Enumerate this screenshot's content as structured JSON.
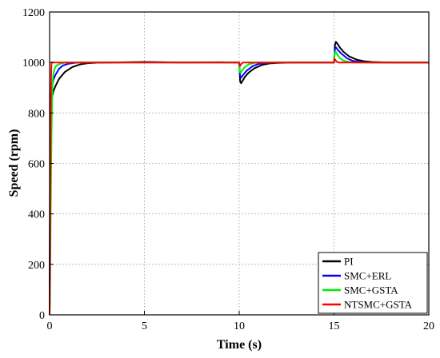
{
  "chart_data": {
    "type": "line",
    "xlabel": "Time (s)",
    "ylabel": "Speed (rpm)",
    "xlim": [
      0,
      20
    ],
    "ylim": [
      0,
      1200
    ],
    "xticks": [
      0,
      5,
      10,
      15,
      20
    ],
    "yticks": [
      0,
      200,
      400,
      600,
      800,
      1000,
      1200
    ],
    "grid": true,
    "legend_position": "bottom-right",
    "series": [
      {
        "name": "PI",
        "color": "#000000",
        "x": [
          0,
          0.02,
          0.05,
          0.08,
          0.1,
          0.15,
          0.2,
          0.3,
          0.5,
          0.8,
          1.2,
          1.6,
          2.0,
          2.5,
          3,
          5,
          7,
          9,
          9.99,
          10.0,
          10.05,
          10.1,
          10.2,
          10.3,
          10.5,
          10.8,
          11.2,
          11.6,
          12,
          13,
          14,
          14.99,
          15.0,
          15.05,
          15.1,
          15.2,
          15.3,
          15.5,
          15.8,
          16.2,
          16.6,
          17,
          18,
          19,
          20
        ],
        "y": [
          0,
          400,
          780,
          830,
          850,
          870,
          885,
          905,
          935,
          962,
          982,
          992,
          997,
          999,
          1000,
          1002,
          1000,
          1001,
          1000,
          1000,
          925,
          918,
          930,
          943,
          960,
          977,
          990,
          996,
          998,
          1000,
          1000,
          1000,
          1000,
          1070,
          1082,
          1072,
          1060,
          1042,
          1024,
          1011,
          1005,
          1002,
          1000,
          1000,
          1000
        ]
      },
      {
        "name": "SMC+ERL",
        "color": "#0000ff",
        "x": [
          0,
          0.02,
          0.05,
          0.1,
          0.15,
          0.2,
          0.3,
          0.5,
          0.7,
          1.0,
          1.3,
          1.6,
          2,
          3,
          5,
          9.99,
          10.0,
          10.05,
          10.1,
          10.2,
          10.4,
          10.7,
          11.0,
          11.4,
          12,
          14.99,
          15.0,
          15.05,
          15.1,
          15.2,
          15.4,
          15.7,
          16.0,
          16.4,
          17,
          20
        ],
        "y": [
          0,
          500,
          860,
          900,
          915,
          930,
          950,
          975,
          988,
          995,
          998,
          1000,
          1000,
          1000,
          1001,
          1000,
          1000,
          945,
          940,
          950,
          968,
          985,
          994,
          998,
          1000,
          1000,
          1000,
          1055,
          1060,
          1050,
          1034,
          1016,
          1006,
          1002,
          1000,
          1000
        ]
      },
      {
        "name": "SMC+GSTA",
        "color": "#00ee00",
        "x": [
          0,
          0.03,
          0.06,
          0.1,
          0.13,
          0.16,
          0.2,
          0.25,
          0.3,
          0.4,
          0.6,
          0.8,
          1.0,
          1.5,
          2,
          5,
          9.99,
          10.0,
          10.03,
          10.08,
          10.15,
          10.3,
          10.5,
          10.8,
          11,
          12,
          14.99,
          15.0,
          15.03,
          15.08,
          15.15,
          15.3,
          15.5,
          15.8,
          16,
          17,
          20
        ],
        "y": [
          0,
          150,
          420,
          720,
          850,
          920,
          955,
          972,
          982,
          990,
          996,
          999,
          1000,
          1000,
          1000,
          1000,
          1000,
          1000,
          962,
          958,
          968,
          982,
          993,
          998,
          1000,
          1000,
          1000,
          1000,
          1040,
          1044,
          1034,
          1018,
          1007,
          1002,
          1000,
          1000,
          1000
        ]
      },
      {
        "name": "NTSMC+GSTA",
        "color": "#ff0000",
        "x": [
          0,
          0.02,
          0.04,
          0.06,
          0.08,
          0.1,
          0.12,
          0.15,
          0.2,
          0.3,
          0.5,
          1,
          2,
          5,
          9.99,
          10.0,
          10.02,
          10.05,
          10.1,
          10.15,
          10.25,
          11,
          14.99,
          15.0,
          15.02,
          15.05,
          15.1,
          15.15,
          15.25,
          16,
          20
        ],
        "y": [
          0,
          200,
          500,
          800,
          950,
          995,
          1001,
          1000,
          1000,
          1000,
          1000,
          1000,
          1000,
          1000,
          1000,
          1000,
          988,
          987,
          993,
          998,
          1000,
          1000,
          1000,
          1000,
          1012,
          1013,
          1007,
          1002,
          1000,
          1000,
          1000
        ]
      }
    ]
  }
}
